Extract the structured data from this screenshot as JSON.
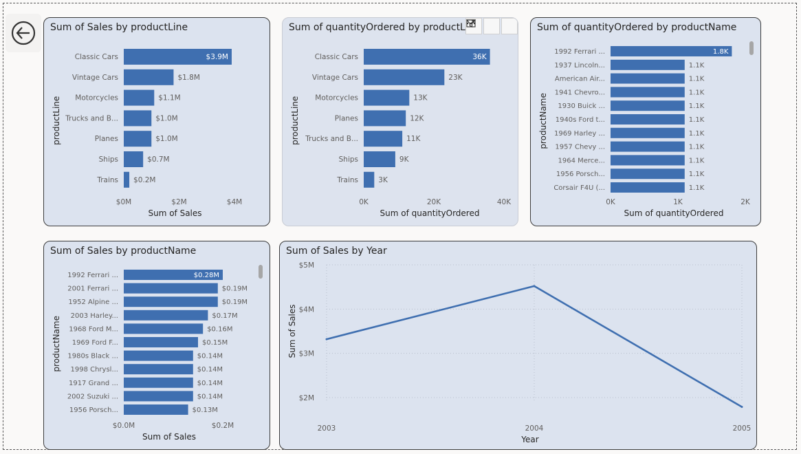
{
  "navigation": {
    "back_icon": "back-arrow-icon"
  },
  "header_icons": [
    "filter-icon",
    "focus-mode-icon",
    "more-options-icon"
  ],
  "colors": {
    "bar": "#3f6fb0",
    "line": "#3f6fb0",
    "panel": "#dce3ef",
    "text": "#252423",
    "axis_text": "#605e5c"
  },
  "chart_data": [
    {
      "id": "sales_by_productline",
      "type": "bar",
      "orientation": "horizontal",
      "title": "Sum of Sales by productLine",
      "ylabel": "productLine",
      "xlabel": "Sum of Sales",
      "categories": [
        "Classic Cars",
        "Vintage Cars",
        "Motorcycles",
        "Trucks and B...",
        "Planes",
        "Ships",
        "Trains"
      ],
      "values": [
        3.9,
        1.8,
        1.1,
        1.0,
        1.0,
        0.7,
        0.2
      ],
      "data_labels": [
        "$3.9M",
        "$1.8M",
        "$1.1M",
        "$1.0M",
        "$1.0M",
        "$0.7M",
        "$0.2M"
      ],
      "xlim": [
        0,
        4
      ],
      "xticks": [
        0,
        2,
        4
      ],
      "xtick_labels": [
        "$0M",
        "$2M",
        "$4M"
      ]
    },
    {
      "id": "qty_by_productline",
      "type": "bar",
      "orientation": "horizontal",
      "title": "Sum of quantityOrdered by productLine",
      "ylabel": "productLine",
      "xlabel": "Sum of quantityOrdered",
      "categories": [
        "Classic Cars",
        "Vintage Cars",
        "Motorcycles",
        "Planes",
        "Trucks and B...",
        "Ships",
        "Trains"
      ],
      "values": [
        36000,
        23000,
        13000,
        12000,
        11000,
        9000,
        3000
      ],
      "data_labels": [
        "36K",
        "23K",
        "13K",
        "12K",
        "11K",
        "9K",
        "3K"
      ],
      "xlim": [
        0,
        40000
      ],
      "xticks": [
        0,
        20000,
        40000
      ],
      "xtick_labels": [
        "0K",
        "20K",
        "40K"
      ]
    },
    {
      "id": "qty_by_productname",
      "type": "bar",
      "orientation": "horizontal",
      "title": "Sum of quantityOrdered by productName",
      "ylabel": "productName",
      "xlabel": "Sum of quantityOrdered",
      "categories": [
        "1992 Ferrari ...",
        "1937 Lincoln...",
        "American Air...",
        "1941 Chevro...",
        "1930 Buick ...",
        "1940s Ford t...",
        "1969 Harley ...",
        "1957 Chevy ...",
        "1964 Merce...",
        "1956 Porsch...",
        "Corsair F4U (..."
      ],
      "values": [
        1800,
        1100,
        1100,
        1100,
        1100,
        1100,
        1100,
        1100,
        1100,
        1100,
        1100
      ],
      "data_labels": [
        "1.8K",
        "1.1K",
        "1.1K",
        "1.1K",
        "1.1K",
        "1.1K",
        "1.1K",
        "1.1K",
        "1.1K",
        "1.1K",
        "1.1K"
      ],
      "xlim": [
        0,
        2000
      ],
      "xticks": [
        0,
        1000,
        2000
      ],
      "xtick_labels": [
        "0K",
        "1K",
        "2K"
      ]
    },
    {
      "id": "sales_by_productname",
      "type": "bar",
      "orientation": "horizontal",
      "title": "Sum of Sales by productName",
      "ylabel": "productName",
      "xlabel": "Sum of Sales",
      "categories": [
        "1992 Ferrari ...",
        "2001 Ferrari ...",
        "1952 Alpine ...",
        "2003 Harley...",
        "1968 Ford M...",
        "1969 Ford F...",
        "1980s Black ...",
        "1998 Chrysl...",
        "1917 Grand ...",
        "2002 Suzuki ...",
        "1956 Porsch..."
      ],
      "values": [
        0.28,
        0.19,
        0.19,
        0.17,
        0.16,
        0.15,
        0.14,
        0.14,
        0.14,
        0.14,
        0.13
      ],
      "data_labels": [
        "$0.28M",
        "$0.19M",
        "$0.19M",
        "$0.17M",
        "$0.16M",
        "$0.15M",
        "$0.14M",
        "$0.14M",
        "$0.14M",
        "$0.14M",
        "$0.13M"
      ],
      "xlim": [
        0,
        0.2
      ],
      "xticks": [
        0,
        0.2
      ],
      "xtick_labels": [
        "$0.0M",
        "$0.2M"
      ]
    },
    {
      "id": "sales_by_year",
      "type": "line",
      "title": "Sum of Sales by Year",
      "xlabel": "Year",
      "ylabel": "Sum of Sales",
      "x": [
        "2003",
        "2004",
        "2005"
      ],
      "values": [
        3.32,
        4.52,
        1.79
      ],
      "ylim": [
        2,
        5
      ],
      "yticks": [
        2,
        3,
        4,
        5
      ],
      "ytick_labels": [
        "$2M",
        "$3M",
        "$4M",
        "$5M"
      ],
      "grid": true
    }
  ]
}
